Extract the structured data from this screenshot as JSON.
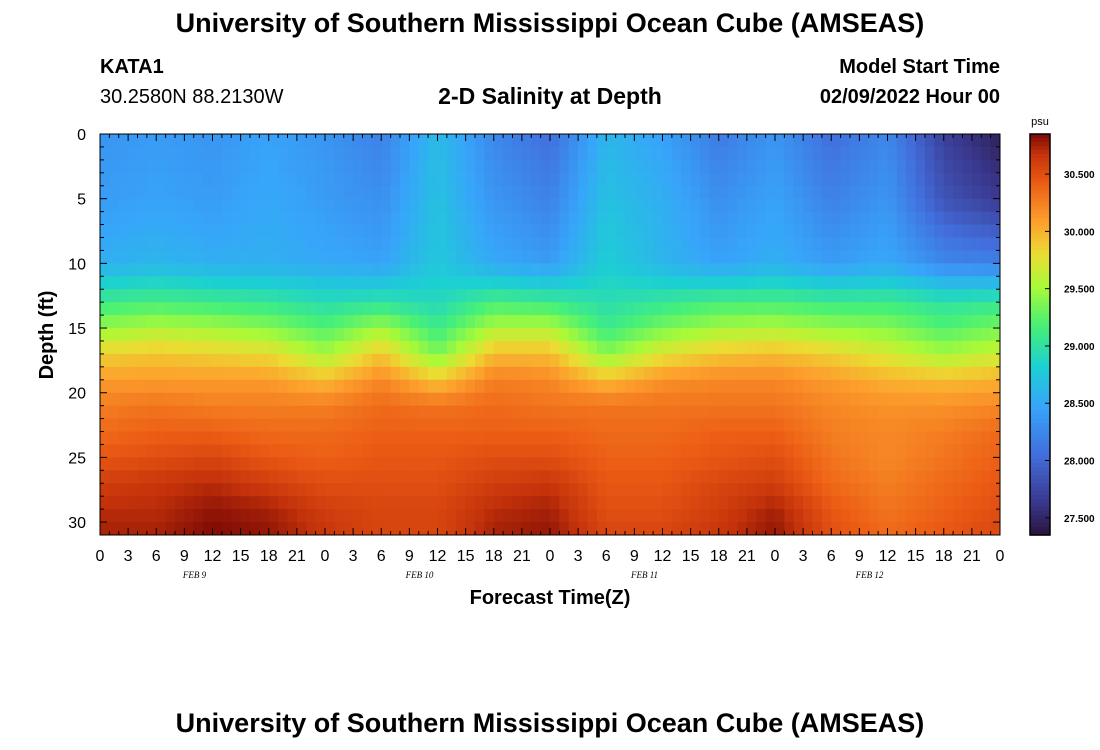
{
  "header": {
    "title": "University of Southern Mississippi Ocean Cube (AMSEAS)",
    "station": "KATA1",
    "coords": "30.2580N  88.2130W",
    "subtitle": "2-D Salinity at Depth",
    "model_start_label": "Model Start Time",
    "model_start_value": "02/09/2022 Hour 00"
  },
  "footer": {
    "title": "University of Southern Mississippi Ocean Cube (AMSEAS)"
  },
  "chart_data": {
    "type": "heatmap",
    "title": "2-D Salinity at Depth",
    "xlabel": "Forecast Time(Z)",
    "ylabel": "Depth (ft)",
    "x_tick_labels": [
      "0",
      "3",
      "6",
      "9",
      "12",
      "15",
      "18",
      "21",
      "0",
      "3",
      "6",
      "9",
      "12",
      "15",
      "18",
      "21",
      "0",
      "3",
      "6",
      "9",
      "12",
      "15",
      "18",
      "21",
      "0",
      "3",
      "6",
      "9",
      "12",
      "15",
      "18",
      "21",
      "0"
    ],
    "date_labels": [
      {
        "label": "FEB 9",
        "hour": 12
      },
      {
        "label": "FEB 10",
        "hour": 36
      },
      {
        "label": "FEB 11",
        "hour": 60
      },
      {
        "label": "FEB 12",
        "hour": 84
      }
    ],
    "xlim": [
      0,
      96
    ],
    "ylim": [
      0,
      31
    ],
    "y_ticks": [
      0,
      5,
      10,
      15,
      20,
      25,
      30
    ],
    "colorbar": {
      "unit": "psu",
      "range": [
        27.35,
        30.85
      ],
      "ticks": [
        "30.500",
        "30.000",
        "29.500",
        "29.000",
        "28.500",
        "28.000",
        "27.500"
      ],
      "tick_values": [
        30.5,
        30.0,
        29.5,
        29.0,
        28.5,
        28.0,
        27.5
      ]
    },
    "grid": {
      "hours": [
        0,
        6,
        12,
        18,
        24,
        30,
        36,
        42,
        48,
        54,
        60,
        66,
        72,
        78,
        84,
        90,
        96
      ],
      "depths_ft": [
        0,
        5,
        10,
        13,
        15,
        17,
        19,
        21,
        23,
        25,
        27,
        29,
        31
      ],
      "salinity_psu": [
        [
          28.35,
          28.4,
          28.35,
          28.45,
          28.35,
          28.2,
          28.65,
          28.25,
          28.05,
          28.6,
          28.45,
          28.15,
          28.35,
          28.05,
          28.25,
          27.7,
          27.45
        ],
        [
          28.4,
          28.45,
          28.4,
          28.5,
          28.4,
          28.3,
          28.7,
          28.35,
          28.2,
          28.7,
          28.55,
          28.3,
          28.45,
          28.2,
          28.35,
          27.85,
          27.65
        ],
        [
          28.55,
          28.6,
          28.55,
          28.55,
          28.5,
          28.45,
          28.75,
          28.5,
          28.4,
          28.8,
          28.6,
          28.45,
          28.55,
          28.4,
          28.5,
          28.25,
          28.2
        ],
        [
          29.1,
          29.15,
          29.1,
          29.05,
          28.95,
          29.0,
          28.9,
          29.15,
          29.1,
          28.95,
          29.05,
          29.15,
          29.15,
          29.1,
          29.1,
          29.0,
          29.05
        ],
        [
          29.45,
          29.55,
          29.5,
          29.4,
          29.2,
          29.5,
          29.1,
          29.55,
          29.55,
          29.1,
          29.35,
          29.5,
          29.55,
          29.45,
          29.4,
          29.2,
          29.35
        ],
        [
          29.85,
          29.9,
          29.85,
          29.8,
          29.5,
          29.9,
          29.35,
          29.95,
          29.95,
          29.4,
          29.75,
          29.9,
          29.95,
          29.85,
          29.7,
          29.5,
          29.65
        ],
        [
          30.1,
          30.1,
          30.1,
          30.1,
          29.95,
          30.2,
          29.9,
          30.25,
          30.2,
          29.95,
          30.15,
          30.2,
          30.2,
          30.1,
          30.0,
          29.95,
          30.0
        ],
        [
          30.25,
          30.3,
          30.25,
          30.25,
          30.25,
          30.35,
          30.3,
          30.35,
          30.3,
          30.3,
          30.3,
          30.3,
          30.3,
          30.2,
          30.15,
          30.15,
          30.2
        ],
        [
          30.35,
          30.4,
          30.4,
          30.35,
          30.35,
          30.4,
          30.4,
          30.4,
          30.4,
          30.35,
          30.35,
          30.4,
          30.4,
          30.25,
          30.2,
          30.25,
          30.35
        ],
        [
          30.45,
          30.5,
          30.55,
          30.45,
          30.4,
          30.45,
          30.45,
          30.5,
          30.5,
          30.4,
          30.4,
          30.45,
          30.5,
          30.3,
          30.2,
          30.3,
          30.4
        ],
        [
          30.6,
          30.65,
          30.7,
          30.6,
          30.5,
          30.5,
          30.5,
          30.6,
          30.65,
          30.45,
          30.45,
          30.55,
          30.6,
          30.35,
          30.25,
          30.35,
          30.45
        ],
        [
          30.7,
          30.7,
          30.8,
          30.75,
          30.6,
          30.55,
          30.55,
          30.7,
          30.75,
          30.5,
          30.5,
          30.6,
          30.75,
          30.45,
          30.3,
          30.4,
          30.5
        ],
        [
          30.75,
          30.75,
          30.85,
          30.8,
          30.65,
          30.55,
          30.55,
          30.75,
          30.8,
          30.55,
          30.55,
          30.65,
          30.8,
          30.5,
          30.35,
          30.45,
          30.55
        ]
      ]
    }
  }
}
